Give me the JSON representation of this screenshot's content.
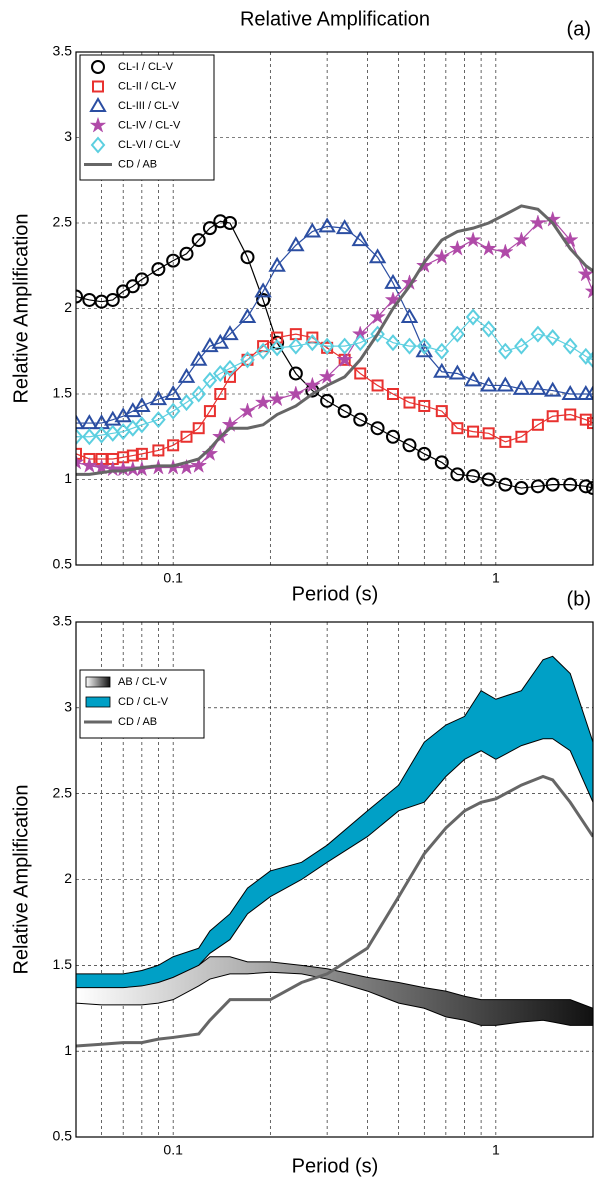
{
  "chart_data": [
    {
      "type": "line",
      "title": "Relative Amplification",
      "panel_label": "(a)",
      "x_label": "Period (s)",
      "y_label": "Relative Amplification",
      "log_x": true,
      "grid": true,
      "legend": "upper left",
      "xlim": [
        0.05,
        2
      ],
      "ylim": [
        0.5,
        3.5
      ],
      "xticks": [
        0.1,
        1
      ],
      "x_minor_ticks": [
        0.05,
        0.06,
        0.07,
        0.08,
        0.09,
        0.2,
        0.3,
        0.4,
        0.5,
        0.6,
        0.7,
        0.8,
        0.9,
        2
      ],
      "yticks": [
        0.5,
        1,
        1.5,
        2,
        2.5,
        3,
        3.5
      ],
      "x": [
        0.05,
        0.055,
        0.06,
        0.065,
        0.07,
        0.075,
        0.08,
        0.09,
        0.1,
        0.11,
        0.12,
        0.13,
        0.14,
        0.15,
        0.17,
        0.19,
        0.21,
        0.24,
        0.27,
        0.3,
        0.34,
        0.38,
        0.43,
        0.48,
        0.54,
        0.6,
        0.68,
        0.76,
        0.85,
        0.95,
        1.07,
        1.2,
        1.35,
        1.5,
        1.7,
        1.9,
        2.0
      ],
      "series": [
        {
          "name": "CL-I / CL-V",
          "color": "#000000",
          "marker": "circle",
          "values": [
            2.07,
            2.05,
            2.04,
            2.05,
            2.1,
            2.13,
            2.17,
            2.23,
            2.28,
            2.32,
            2.4,
            2.47,
            2.51,
            2.5,
            2.3,
            2.05,
            1.8,
            1.62,
            1.52,
            1.46,
            1.4,
            1.35,
            1.3,
            1.25,
            1.2,
            1.15,
            1.1,
            1.03,
            1.02,
            1.0,
            0.97,
            0.95,
            0.96,
            0.97,
            0.97,
            0.96,
            0.95
          ]
        },
        {
          "name": "CL-II / CL-V",
          "color": "#e8312f",
          "marker": "square",
          "values": [
            1.15,
            1.12,
            1.12,
            1.12,
            1.13,
            1.14,
            1.15,
            1.17,
            1.2,
            1.25,
            1.3,
            1.4,
            1.5,
            1.6,
            1.7,
            1.78,
            1.83,
            1.85,
            1.83,
            1.77,
            1.7,
            1.62,
            1.55,
            1.5,
            1.45,
            1.43,
            1.4,
            1.3,
            1.28,
            1.27,
            1.22,
            1.25,
            1.32,
            1.37,
            1.38,
            1.35,
            1.33
          ]
        },
        {
          "name": "CL-III / CL-V",
          "color": "#2b4ea2",
          "marker": "triangle",
          "values": [
            1.33,
            1.33,
            1.33,
            1.35,
            1.37,
            1.4,
            1.43,
            1.47,
            1.5,
            1.6,
            1.7,
            1.78,
            1.8,
            1.85,
            1.95,
            2.1,
            2.25,
            2.37,
            2.45,
            2.48,
            2.47,
            2.4,
            2.3,
            2.15,
            1.95,
            1.75,
            1.63,
            1.62,
            1.58,
            1.55,
            1.55,
            1.53,
            1.53,
            1.52,
            1.5,
            1.5,
            1.5
          ]
        },
        {
          "name": "CL-IV / CL-V",
          "color": "#b04aa8",
          "marker": "star",
          "values": [
            1.1,
            1.08,
            1.07,
            1.06,
            1.06,
            1.06,
            1.06,
            1.07,
            1.07,
            1.07,
            1.08,
            1.15,
            1.25,
            1.32,
            1.4,
            1.45,
            1.47,
            1.5,
            1.55,
            1.6,
            1.7,
            1.85,
            1.95,
            2.05,
            2.15,
            2.25,
            2.3,
            2.35,
            2.4,
            2.35,
            2.33,
            2.4,
            2.5,
            2.52,
            2.4,
            2.2,
            2.1
          ]
        },
        {
          "name": "CL-VI / CL-V",
          "color": "#5ccfe0",
          "marker": "diamond",
          "values": [
            1.25,
            1.25,
            1.26,
            1.27,
            1.28,
            1.3,
            1.32,
            1.35,
            1.4,
            1.45,
            1.5,
            1.58,
            1.62,
            1.65,
            1.7,
            1.75,
            1.77,
            1.78,
            1.8,
            1.78,
            1.78,
            1.8,
            1.85,
            1.8,
            1.78,
            1.78,
            1.75,
            1.85,
            1.95,
            1.88,
            1.75,
            1.78,
            1.85,
            1.83,
            1.78,
            1.72,
            1.7
          ]
        },
        {
          "name": "CD / AB",
          "color": "#666666",
          "marker": null,
          "values": [
            1.03,
            1.03,
            1.04,
            1.05,
            1.05,
            1.06,
            1.07,
            1.08,
            1.08,
            1.1,
            1.12,
            1.18,
            1.25,
            1.3,
            1.3,
            1.32,
            1.38,
            1.43,
            1.5,
            1.55,
            1.6,
            1.7,
            1.85,
            2.0,
            2.13,
            2.27,
            2.4,
            2.45,
            2.47,
            2.5,
            2.55,
            2.6,
            2.58,
            2.5,
            2.35,
            2.25,
            2.22
          ]
        }
      ]
    },
    {
      "type": "area",
      "panel_label": "(b)",
      "x_label": "Period (s)",
      "y_label": "Relative Amplification",
      "log_x": true,
      "grid": true,
      "legend": "upper left",
      "xlim": [
        0.05,
        2
      ],
      "ylim": [
        0.5,
        3.5
      ],
      "xticks": [
        0.1,
        1
      ],
      "x_minor_ticks": [
        0.05,
        0.06,
        0.07,
        0.08,
        0.09,
        0.2,
        0.3,
        0.4,
        0.5,
        0.6,
        0.7,
        0.8,
        0.9,
        2
      ],
      "yticks": [
        0.5,
        1,
        1.5,
        2,
        2.5,
        3,
        3.5
      ],
      "x": [
        0.05,
        0.06,
        0.07,
        0.08,
        0.09,
        0.1,
        0.12,
        0.13,
        0.15,
        0.17,
        0.2,
        0.25,
        0.3,
        0.4,
        0.5,
        0.6,
        0.7,
        0.8,
        0.9,
        1.0,
        1.2,
        1.4,
        1.5,
        1.7,
        2.0
      ],
      "series": [
        {
          "name": "AB / CL-V",
          "gradient": [
            "#ffffff",
            "#111111"
          ],
          "upper": [
            1.42,
            1.4,
            1.4,
            1.42,
            1.45,
            1.48,
            1.5,
            1.55,
            1.55,
            1.52,
            1.52,
            1.5,
            1.48,
            1.43,
            1.4,
            1.37,
            1.35,
            1.32,
            1.3,
            1.3,
            1.3,
            1.3,
            1.3,
            1.3,
            1.25
          ],
          "lower": [
            1.28,
            1.27,
            1.27,
            1.27,
            1.28,
            1.3,
            1.38,
            1.42,
            1.45,
            1.45,
            1.46,
            1.45,
            1.42,
            1.35,
            1.28,
            1.25,
            1.2,
            1.18,
            1.15,
            1.15,
            1.17,
            1.18,
            1.17,
            1.15,
            1.15
          ]
        },
        {
          "name": "CD / CL-V",
          "color": "#00a0c6",
          "upper": [
            1.45,
            1.45,
            1.45,
            1.47,
            1.5,
            1.55,
            1.6,
            1.7,
            1.8,
            1.95,
            2.05,
            2.1,
            2.2,
            2.4,
            2.55,
            2.8,
            2.9,
            2.95,
            3.1,
            3.05,
            3.1,
            3.28,
            3.3,
            3.2,
            2.8
          ],
          "lower": [
            1.37,
            1.37,
            1.37,
            1.38,
            1.4,
            1.43,
            1.5,
            1.57,
            1.65,
            1.8,
            1.9,
            2.0,
            2.1,
            2.25,
            2.4,
            2.45,
            2.6,
            2.7,
            2.75,
            2.7,
            2.78,
            2.82,
            2.82,
            2.75,
            2.45
          ]
        },
        {
          "name": "CD / AB",
          "color": "#666666",
          "values": [
            1.03,
            1.04,
            1.05,
            1.05,
            1.07,
            1.08,
            1.1,
            1.18,
            1.3,
            1.3,
            1.3,
            1.4,
            1.45,
            1.6,
            1.9,
            2.15,
            2.3,
            2.4,
            2.45,
            2.47,
            2.55,
            2.6,
            2.58,
            2.45,
            2.25
          ]
        }
      ]
    }
  ]
}
